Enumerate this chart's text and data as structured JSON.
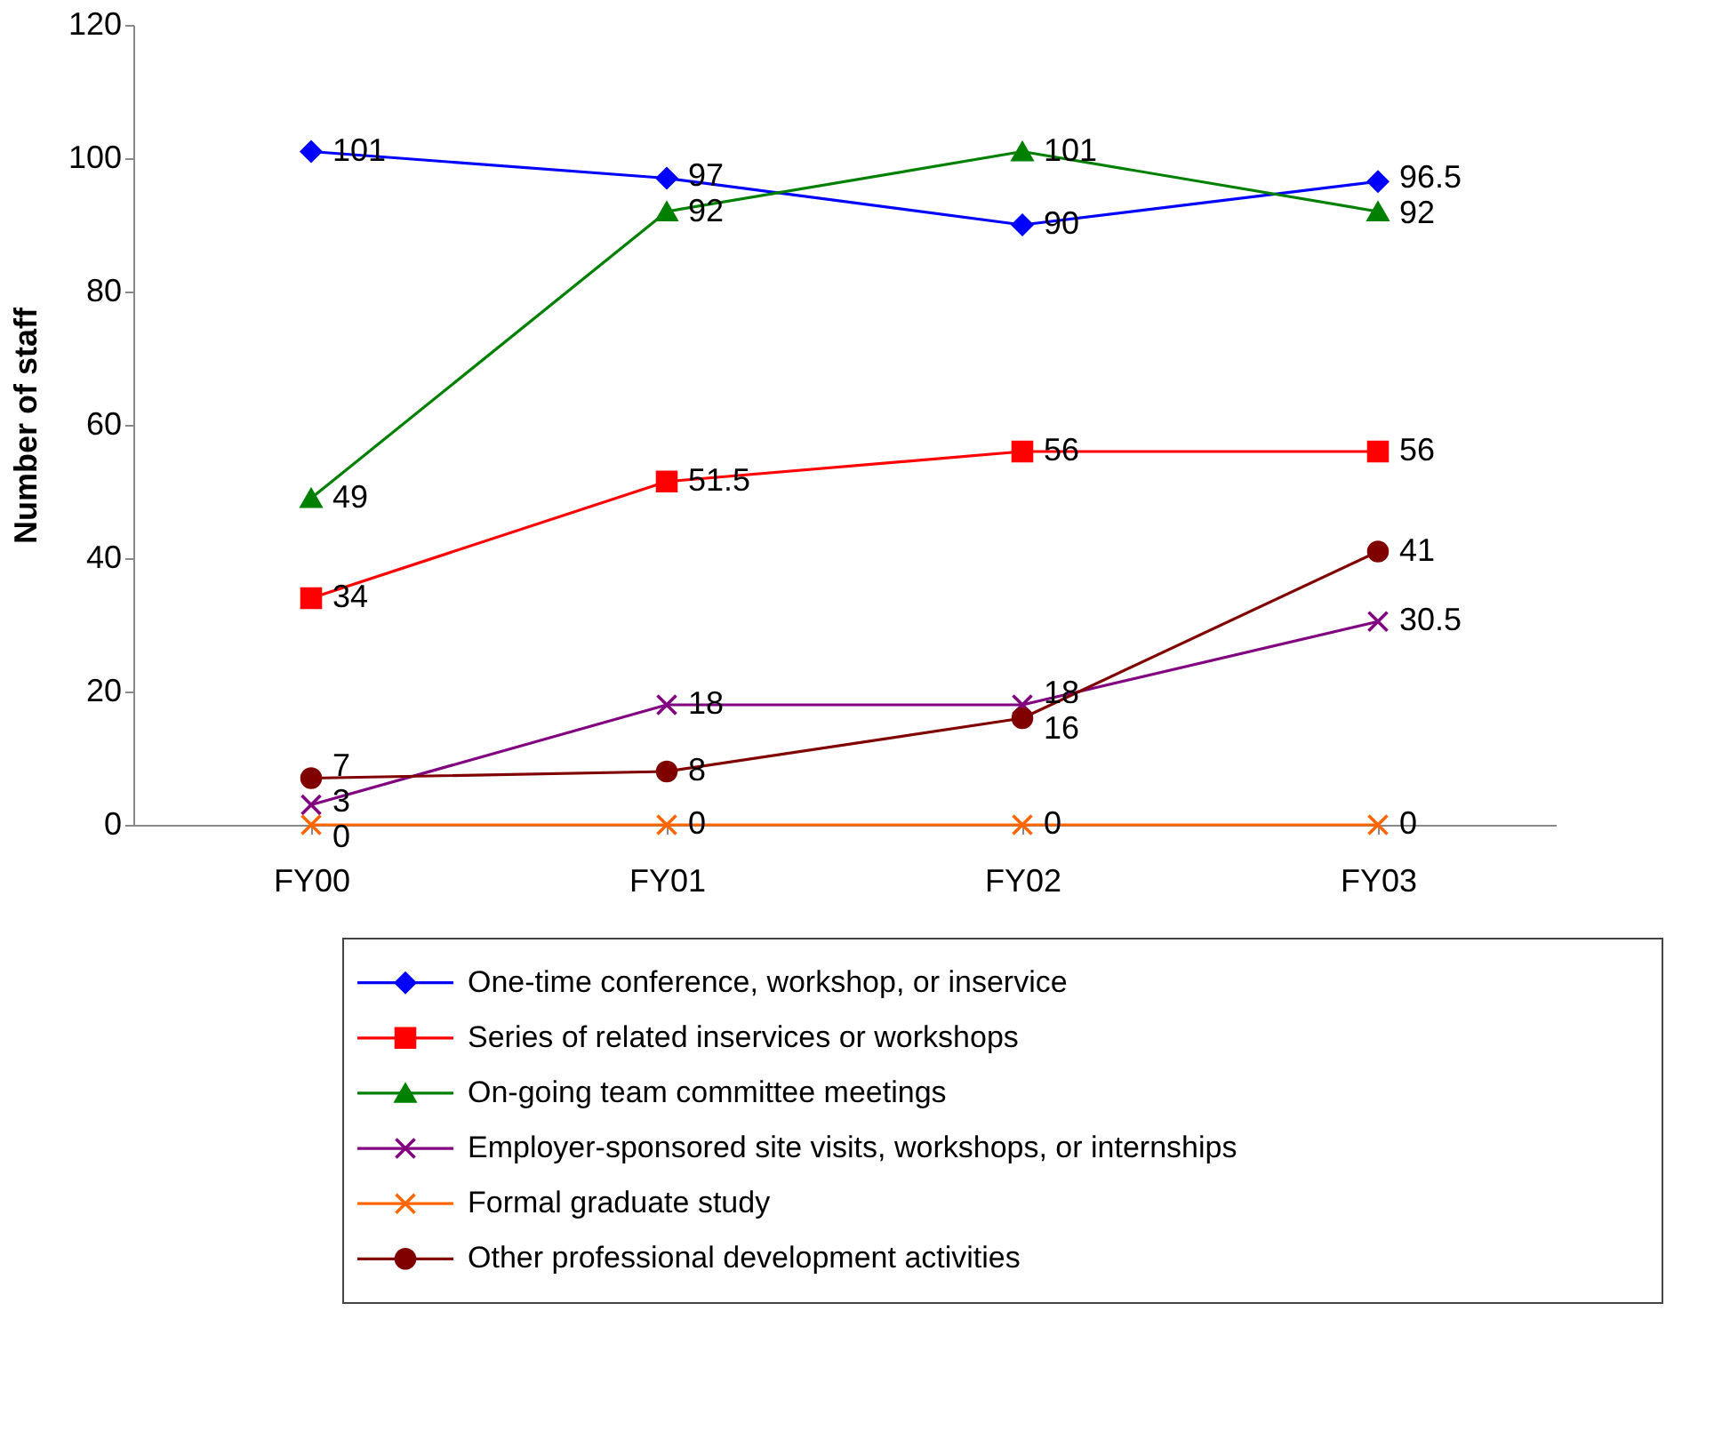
{
  "chart_data": {
    "type": "line",
    "ylabel": "Number of staff",
    "categories": [
      "FY00",
      "FY01",
      "FY02",
      "FY03"
    ],
    "ylim": [
      0,
      120
    ],
    "yticks": [
      0,
      20,
      40,
      60,
      80,
      100,
      120
    ],
    "grid": false,
    "legend": "bottom",
    "data_labels": true,
    "series": [
      {
        "name": "One-time conference, workshop, or inservice",
        "color": "#0000ff",
        "marker": "diamond",
        "values": [
          101,
          97,
          90,
          96.5
        ]
      },
      {
        "name": "Series of related inservices or workshops",
        "color": "#ff0000",
        "marker": "square",
        "values": [
          34,
          51.5,
          56,
          56
        ]
      },
      {
        "name": "On-going team committee meetings",
        "color": "#008000",
        "marker": "triangle",
        "values": [
          49,
          92,
          101,
          92
        ]
      },
      {
        "name": "Employer-sponsored site visits, workshops, or internships",
        "color": "#800080",
        "marker": "cross",
        "values": [
          3,
          18,
          18,
          30.5
        ]
      },
      {
        "name": "Formal graduate study",
        "color": "#ff6600",
        "marker": "cross",
        "values": [
          0,
          0,
          0,
          0
        ]
      },
      {
        "name": "Other professional development activities",
        "color": "#800000",
        "marker": "circle",
        "values": [
          7,
          8,
          16,
          41
        ]
      }
    ]
  }
}
